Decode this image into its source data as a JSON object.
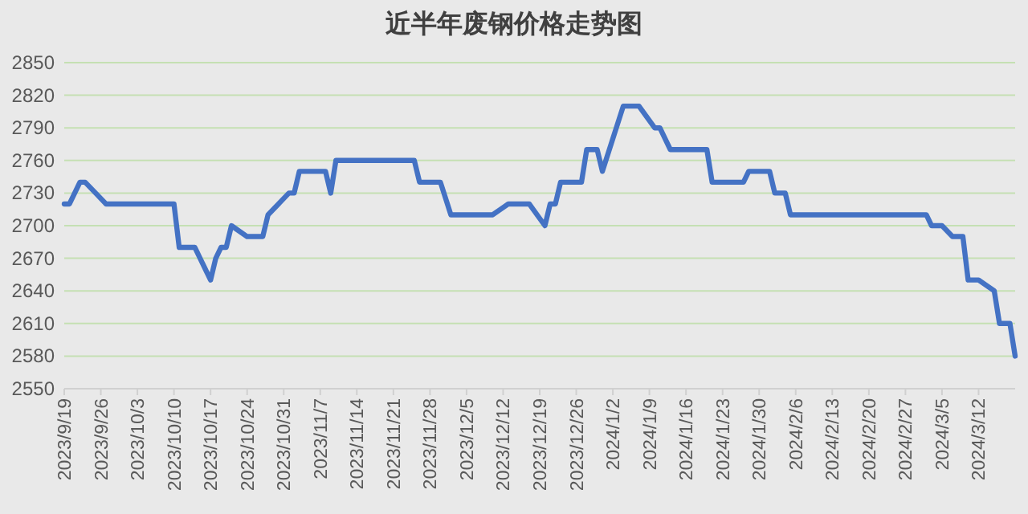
{
  "chart_data": {
    "type": "line",
    "title": "近半年废钢价格走势图",
    "x": [
      "2023-09-19",
      "2023-09-20",
      "2023-09-22",
      "2023-09-23",
      "2023-09-25",
      "2023-09-27",
      "2023-10-10",
      "2023-10-11",
      "2023-10-14",
      "2023-10-17",
      "2023-10-18",
      "2023-10-19",
      "2023-10-20",
      "2023-10-21",
      "2023-10-24",
      "2023-10-27",
      "2023-10-28",
      "2023-10-30",
      "2023-11-01",
      "2023-11-02",
      "2023-11-03",
      "2023-11-08",
      "2023-11-09",
      "2023-11-10",
      "2023-11-25",
      "2023-11-26",
      "2023-11-30",
      "2023-12-02",
      "2023-12-10",
      "2023-12-13",
      "2023-12-17",
      "2023-12-20",
      "2023-12-21",
      "2023-12-22",
      "2023-12-23",
      "2023-12-27",
      "2023-12-28",
      "2023-12-30",
      "2023-12-31",
      "2024-01-04",
      "2024-01-07",
      "2024-01-10",
      "2024-01-11",
      "2024-01-13",
      "2024-01-20",
      "2024-01-21",
      "2024-01-27",
      "2024-01-28",
      "2024-02-01",
      "2024-02-02",
      "2024-02-04",
      "2024-02-05",
      "2024-03-02",
      "2024-03-03",
      "2024-03-05",
      "2024-03-07",
      "2024-03-09",
      "2024-03-10",
      "2024-03-12",
      "2024-03-15",
      "2024-03-16",
      "2024-03-18",
      "2024-03-19"
    ],
    "values": [
      2720,
      2720,
      2740,
      2740,
      2730,
      2720,
      2720,
      2680,
      2680,
      2650,
      2670,
      2680,
      2680,
      2700,
      2690,
      2690,
      2710,
      2720,
      2730,
      2730,
      2750,
      2750,
      2730,
      2760,
      2760,
      2740,
      2740,
      2710,
      2710,
      2720,
      2720,
      2700,
      2720,
      2720,
      2740,
      2740,
      2770,
      2770,
      2750,
      2810,
      2810,
      2790,
      2790,
      2770,
      2770,
      2740,
      2740,
      2750,
      2750,
      2730,
      2730,
      2710,
      2710,
      2700,
      2700,
      2690,
      2690,
      2650,
      2650,
      2640,
      2610,
      2610,
      2580
    ],
    "color": "#4472c4",
    "xlim": [
      "2023-09-19",
      "2024-03-19"
    ],
    "xticks": [
      {
        "value": "2023-09-19",
        "label": "2023/9/19"
      },
      {
        "value": "2023-09-26",
        "label": "2023/9/26"
      },
      {
        "value": "2023-10-03",
        "label": "2023/10/3"
      },
      {
        "value": "2023-10-10",
        "label": "2023/10/10"
      },
      {
        "value": "2023-10-17",
        "label": "2023/10/17"
      },
      {
        "value": "2023-10-24",
        "label": "2023/10/24"
      },
      {
        "value": "2023-10-31",
        "label": "2023/10/31"
      },
      {
        "value": "2023-11-07",
        "label": "2023/11/7"
      },
      {
        "value": "2023-11-14",
        "label": "2023/11/14"
      },
      {
        "value": "2023-11-21",
        "label": "2023/11/21"
      },
      {
        "value": "2023-11-28",
        "label": "2023/11/28"
      },
      {
        "value": "2023-12-05",
        "label": "2023/12/5"
      },
      {
        "value": "2023-12-12",
        "label": "2023/12/12"
      },
      {
        "value": "2023-12-19",
        "label": "2023/12/19"
      },
      {
        "value": "2023-12-26",
        "label": "2023/12/26"
      },
      {
        "value": "2024-01-02",
        "label": "2024/1/2"
      },
      {
        "value": "2024-01-09",
        "label": "2024/1/9"
      },
      {
        "value": "2024-01-16",
        "label": "2024/1/16"
      },
      {
        "value": "2024-01-23",
        "label": "2024/1/23"
      },
      {
        "value": "2024-01-30",
        "label": "2024/1/30"
      },
      {
        "value": "2024-02-06",
        "label": "2024/2/6"
      },
      {
        "value": "2024-02-13",
        "label": "2024/2/13"
      },
      {
        "value": "2024-02-20",
        "label": "2024/2/20"
      },
      {
        "value": "2024-02-27",
        "label": "2024/2/27"
      },
      {
        "value": "2024-03-05",
        "label": "2024/3/5"
      },
      {
        "value": "2024-03-12",
        "label": "2024/3/12"
      }
    ],
    "ylim": [
      2550,
      2850
    ],
    "yticks": [
      2550,
      2580,
      2610,
      2640,
      2670,
      2700,
      2730,
      2760,
      2790,
      2820,
      2850
    ],
    "grid": "y"
  }
}
